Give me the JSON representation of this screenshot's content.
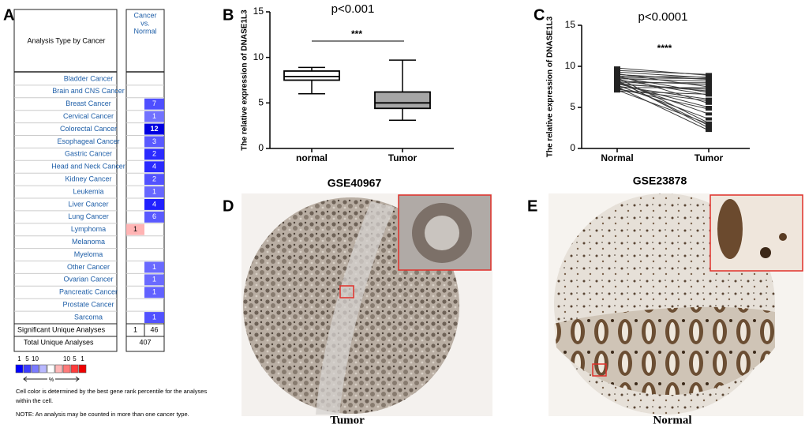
{
  "oncomine": {
    "panel": "A",
    "header": {
      "left": "Analysis Type by Cancer",
      "right": [
        "Cancer",
        "vs.",
        "Normal"
      ]
    },
    "rows": [
      {
        "cancer": "Bladder Cancer"
      },
      {
        "cancer": "Brain and CNS Cancer"
      },
      {
        "cancer": "Breast Cancer",
        "under": 7,
        "under_color": "#4f4fff"
      },
      {
        "cancer": "Cervical Cancer",
        "under": 1,
        "under_color": "#7272ff"
      },
      {
        "cancer": "Colorectal Cancer",
        "under": 12,
        "under_color": "#0000e0"
      },
      {
        "cancer": "Esophageal Cancer",
        "under": 3,
        "under_color": "#5a5aff"
      },
      {
        "cancer": "Gastric Cancer",
        "under": 2,
        "under_color": "#2a2aff"
      },
      {
        "cancer": "Head and Neck Cancer",
        "under": 4,
        "under_color": "#2a2aff"
      },
      {
        "cancer": "Kidney Cancer",
        "under": 2,
        "under_color": "#5252ff"
      },
      {
        "cancer": "Leukemia",
        "under": 1,
        "under_color": "#6868ff"
      },
      {
        "cancer": "Liver Cancer",
        "under": 4,
        "under_color": "#2020ff"
      },
      {
        "cancer": "Lung Cancer",
        "under": 6,
        "under_color": "#5a5aff"
      },
      {
        "cancer": "Lymphoma",
        "over": 1,
        "over_color": "#ffb4b4"
      },
      {
        "cancer": "Melanoma"
      },
      {
        "cancer": "Myeloma"
      },
      {
        "cancer": "Other Cancer",
        "under": 1,
        "under_color": "#6a6aff"
      },
      {
        "cancer": "Ovarian Cancer",
        "under": 1,
        "under_color": "#6a6aff"
      },
      {
        "cancer": "Pancreatic Cancer",
        "under": 1,
        "under_color": "#6262ff"
      },
      {
        "cancer": "Prostate Cancer"
      },
      {
        "cancer": "Sarcoma",
        "under": 1,
        "under_color": "#5252ff"
      }
    ],
    "significant": {
      "label": "Significant Unique Analyses",
      "over": 1,
      "under": 46
    },
    "total": {
      "label": "Total Unique Analyses",
      "value": 407
    },
    "legend": {
      "blue_labels": [
        "1",
        "5",
        "10"
      ],
      "red_labels": [
        "10",
        "5",
        "1"
      ],
      "unit": "%",
      "colors": [
        "#0000ff",
        "#3c3cff",
        "#7a7aff",
        "#b8b8ff",
        "#ffffff",
        "#ffb8b8",
        "#ff7a7a",
        "#ff3c3c",
        "#ee0000"
      ]
    },
    "notes": [
      "Cell color is determined by the best gene rank percentile for the analyses",
      "within the cell.",
      "NOTE: An analysis may be counted in more than one cancer type."
    ]
  },
  "chart_data": [
    {
      "type": "box",
      "panel": "B",
      "title": "p<0.001",
      "annotation": "***",
      "y_label": "The relative expression of DNASE1L3",
      "caption": "GSE40967",
      "categories": [
        "normal",
        "Tumor"
      ],
      "boxes": [
        {
          "min": 6.0,
          "q1": 7.5,
          "median": 7.9,
          "q3": 8.5,
          "max": 8.9
        },
        {
          "min": 3.1,
          "q1": 4.4,
          "median": 5.0,
          "q3": 6.2,
          "max": 9.7
        }
      ],
      "colors": [
        "#ffffff",
        "#a6a6a6"
      ],
      "ylim": [
        0,
        15
      ],
      "yticks": [
        0,
        5,
        10,
        15
      ]
    },
    {
      "type": "paired",
      "panel": "C",
      "title": "p<0.0001",
      "annotation": "****",
      "y_label": "The relative expression of DNASE1L3",
      "caption": "GSE23878",
      "categories": [
        "Normal",
        "Tumor"
      ],
      "pairs": [
        [
          9.8,
          8.9
        ],
        [
          9.5,
          9.0
        ],
        [
          9.3,
          8.6
        ],
        [
          9.1,
          7.5
        ],
        [
          9.0,
          8.4
        ],
        [
          8.9,
          5.5
        ],
        [
          8.8,
          8.7
        ],
        [
          8.7,
          6.8
        ],
        [
          8.6,
          3.1
        ],
        [
          8.5,
          8.2
        ],
        [
          8.4,
          6.5
        ],
        [
          8.3,
          2.5
        ],
        [
          8.2,
          7.8
        ],
        [
          8.1,
          4.2
        ],
        [
          8.0,
          8.0
        ],
        [
          7.9,
          5.0
        ],
        [
          7.8,
          7.2
        ],
        [
          7.7,
          3.6
        ],
        [
          7.6,
          6.0
        ],
        [
          7.5,
          2.2
        ],
        [
          7.4,
          7.4
        ],
        [
          7.3,
          4.8
        ],
        [
          7.2,
          5.8
        ],
        [
          7.1,
          3.0
        ],
        [
          7.0,
          6.6
        ],
        [
          8.6,
          8.5
        ],
        [
          8.2,
          2.8
        ],
        [
          7.9,
          7.0
        ]
      ],
      "color": "#3a3a3a",
      "ylim": [
        0,
        15
      ],
      "yticks": [
        0,
        5,
        10,
        15
      ]
    }
  ],
  "images": [
    {
      "panel": "D",
      "caption": "Tumor"
    },
    {
      "panel": "E",
      "caption": "Normal"
    }
  ]
}
